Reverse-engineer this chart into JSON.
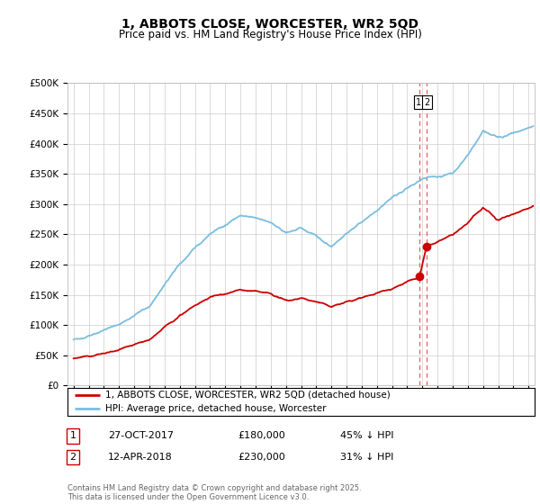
{
  "title": "1, ABBOTS CLOSE, WORCESTER, WR2 5QD",
  "subtitle": "Price paid vs. HM Land Registry's House Price Index (HPI)",
  "ylabel_ticks": [
    "£0",
    "£50K",
    "£100K",
    "£150K",
    "£200K",
    "£250K",
    "£300K",
    "£350K",
    "£400K",
    "£450K",
    "£500K"
  ],
  "ytick_values": [
    0,
    50000,
    100000,
    150000,
    200000,
    250000,
    300000,
    350000,
    400000,
    450000,
    500000
  ],
  "ylim": [
    0,
    500000
  ],
  "xlim_start": 1994.6,
  "xlim_end": 2025.4,
  "hpi_color": "#7bbde0",
  "price_color": "#cc0000",
  "dashed_color": "#e06060",
  "point1_x": 2017.82,
  "point1_y": 180000,
  "point2_x": 2018.28,
  "point2_y": 230000,
  "legend_label1": "1, ABBOTS CLOSE, WORCESTER, WR2 5QD (detached house)",
  "legend_label2": "HPI: Average price, detached house, Worcester",
  "transaction1_label": "1",
  "transaction1_date": "27-OCT-2017",
  "transaction1_price": "£180,000",
  "transaction1_hpi": "45% ↓ HPI",
  "transaction2_label": "2",
  "transaction2_date": "12-APR-2018",
  "transaction2_price": "£230,000",
  "transaction2_hpi": "31% ↓ HPI",
  "footer": "Contains HM Land Registry data © Crown copyright and database right 2025.\nThis data is licensed under the Open Government Licence v3.0.",
  "bg_color": "#ffffff",
  "plot_bg_color": "#ffffff",
  "grid_color": "#cccccc"
}
